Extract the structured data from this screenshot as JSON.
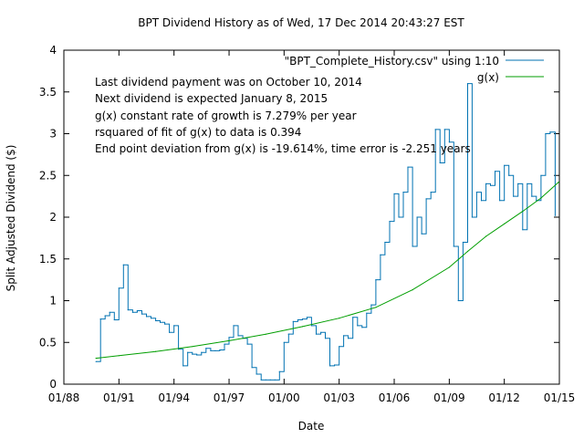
{
  "chart_data": {
    "type": "line",
    "title": "BPT Dividend History as of Wed, 17 Dec 2014 20:43:27 EST",
    "xlabel": "Date",
    "ylabel": "Split Adjusted Dividend ($)",
    "x_axis": {
      "kind": "date",
      "min": "1988-01-01",
      "max": "2015-01-01",
      "ticks": [
        {
          "date": "1988-01-01",
          "label": "01/88"
        },
        {
          "date": "1991-01-01",
          "label": "01/91"
        },
        {
          "date": "1994-01-01",
          "label": "01/94"
        },
        {
          "date": "1997-01-01",
          "label": "01/97"
        },
        {
          "date": "2000-01-01",
          "label": "01/00"
        },
        {
          "date": "2003-01-01",
          "label": "01/03"
        },
        {
          "date": "2006-01-01",
          "label": "01/06"
        },
        {
          "date": "2009-01-01",
          "label": "01/09"
        },
        {
          "date": "2012-01-01",
          "label": "01/12"
        },
        {
          "date": "2015-01-01",
          "label": "01/15"
        }
      ]
    },
    "y_axis": {
      "min": 0,
      "max": 4,
      "ticks": [
        {
          "value": 0,
          "label": "0"
        },
        {
          "value": 0.5,
          "label": "0.5"
        },
        {
          "value": 1,
          "label": "1"
        },
        {
          "value": 1.5,
          "label": "1.5"
        },
        {
          "value": 2,
          "label": "2"
        },
        {
          "value": 2.5,
          "label": "2.5"
        },
        {
          "value": 3,
          "label": "3"
        },
        {
          "value": 3.5,
          "label": "3.5"
        },
        {
          "value": 4,
          "label": "4"
        }
      ]
    },
    "grid": false,
    "legend_position": "top-right",
    "annotations": [
      "Last dividend payment was on October 10, 2014",
      "Next dividend is expected January 8, 2015",
      "g(x) constant rate of growth is  7.279% per year",
      "rsquared of fit of g(x) to data is  0.394",
      "End point deviation from g(x) is  -19.614%, time error is  -2.251 years"
    ],
    "series": [
      {
        "name": "\"BPT_Complete_History.csv\" using 1:10",
        "color": "#0072b2",
        "style": "steps",
        "points": [
          [
            "1989-10-01",
            0.27
          ],
          [
            "1990-01-01",
            0.78
          ],
          [
            "1990-04-01",
            0.82
          ],
          [
            "1990-07-01",
            0.86
          ],
          [
            "1990-10-01",
            0.77
          ],
          [
            "1991-01-01",
            1.15
          ],
          [
            "1991-04-01",
            1.43
          ],
          [
            "1991-07-01",
            0.89
          ],
          [
            "1991-10-01",
            0.86
          ],
          [
            "1992-01-01",
            0.88
          ],
          [
            "1992-04-01",
            0.84
          ],
          [
            "1992-07-01",
            0.81
          ],
          [
            "1992-10-01",
            0.79
          ],
          [
            "1993-01-01",
            0.76
          ],
          [
            "1993-04-01",
            0.74
          ],
          [
            "1993-07-01",
            0.72
          ],
          [
            "1993-10-01",
            0.62
          ],
          [
            "1994-01-01",
            0.7
          ],
          [
            "1994-04-01",
            0.42
          ],
          [
            "1994-07-01",
            0.22
          ],
          [
            "1994-10-01",
            0.38
          ],
          [
            "1995-01-01",
            0.36
          ],
          [
            "1995-04-01",
            0.35
          ],
          [
            "1995-07-01",
            0.38
          ],
          [
            "1995-10-01",
            0.43
          ],
          [
            "1996-01-01",
            0.4
          ],
          [
            "1996-04-01",
            0.4
          ],
          [
            "1996-07-01",
            0.41
          ],
          [
            "1996-10-01",
            0.48
          ],
          [
            "1997-01-01",
            0.56
          ],
          [
            "1997-04-01",
            0.7
          ],
          [
            "1997-07-01",
            0.58
          ],
          [
            "1997-10-01",
            0.55
          ],
          [
            "1998-01-01",
            0.48
          ],
          [
            "1998-04-01",
            0.2
          ],
          [
            "1998-07-01",
            0.12
          ],
          [
            "1998-10-01",
            0.05
          ],
          [
            "1999-01-01",
            0.05
          ],
          [
            "1999-04-01",
            0.05
          ],
          [
            "1999-07-01",
            0.05
          ],
          [
            "1999-10-01",
            0.15
          ],
          [
            "2000-01-01",
            0.5
          ],
          [
            "2000-04-01",
            0.6
          ],
          [
            "2000-07-01",
            0.75
          ],
          [
            "2000-10-01",
            0.77
          ],
          [
            "2001-01-01",
            0.78
          ],
          [
            "2001-04-01",
            0.8
          ],
          [
            "2001-07-01",
            0.7
          ],
          [
            "2001-10-01",
            0.6
          ],
          [
            "2002-01-01",
            0.62
          ],
          [
            "2002-04-01",
            0.55
          ],
          [
            "2002-07-01",
            0.22
          ],
          [
            "2002-10-01",
            0.23
          ],
          [
            "2003-01-01",
            0.45
          ],
          [
            "2003-04-01",
            0.58
          ],
          [
            "2003-07-01",
            0.55
          ],
          [
            "2003-10-01",
            0.8
          ],
          [
            "2004-01-01",
            0.7
          ],
          [
            "2004-04-01",
            0.68
          ],
          [
            "2004-07-01",
            0.85
          ],
          [
            "2004-10-01",
            0.95
          ],
          [
            "2005-01-01",
            1.25
          ],
          [
            "2005-04-01",
            1.55
          ],
          [
            "2005-07-01",
            1.7
          ],
          [
            "2005-10-01",
            1.95
          ],
          [
            "2006-01-01",
            2.28
          ],
          [
            "2006-04-01",
            2.0
          ],
          [
            "2006-07-01",
            2.3
          ],
          [
            "2006-10-01",
            2.6
          ],
          [
            "2007-01-01",
            1.65
          ],
          [
            "2007-04-01",
            2.0
          ],
          [
            "2007-07-01",
            1.8
          ],
          [
            "2007-10-01",
            2.22
          ],
          [
            "2008-01-01",
            2.3
          ],
          [
            "2008-04-01",
            3.05
          ],
          [
            "2008-07-01",
            2.65
          ],
          [
            "2008-10-01",
            3.05
          ],
          [
            "2009-01-01",
            2.9
          ],
          [
            "2009-04-01",
            1.65
          ],
          [
            "2009-07-01",
            1.0
          ],
          [
            "2009-10-01",
            1.7
          ],
          [
            "2010-01-01",
            3.6
          ],
          [
            "2010-04-01",
            2.0
          ],
          [
            "2010-07-01",
            2.3
          ],
          [
            "2010-10-01",
            2.2
          ],
          [
            "2011-01-01",
            2.4
          ],
          [
            "2011-04-01",
            2.38
          ],
          [
            "2011-07-01",
            2.55
          ],
          [
            "2011-10-01",
            2.2
          ],
          [
            "2012-01-01",
            2.62
          ],
          [
            "2012-04-01",
            2.5
          ],
          [
            "2012-07-01",
            2.25
          ],
          [
            "2012-10-01",
            2.4
          ],
          [
            "2013-01-01",
            1.85
          ],
          [
            "2013-04-01",
            2.4
          ],
          [
            "2013-07-01",
            2.25
          ],
          [
            "2013-10-01",
            2.2
          ],
          [
            "2014-01-01",
            2.5
          ],
          [
            "2014-04-01",
            3.0
          ],
          [
            "2014-07-01",
            3.02
          ],
          [
            "2014-10-10",
            2.02
          ]
        ]
      },
      {
        "name": "g(x)",
        "color": "#009e00",
        "style": "line",
        "points": [
          [
            "1989-10-01",
            0.31
          ],
          [
            "1991-01-01",
            0.341
          ],
          [
            "1993-01-01",
            0.391
          ],
          [
            "1995-01-01",
            0.45
          ],
          [
            "1997-01-01",
            0.52
          ],
          [
            "1999-01-01",
            0.598
          ],
          [
            "2001-01-01",
            0.69
          ],
          [
            "2003-01-01",
            0.79
          ],
          [
            "2005-01-01",
            0.92
          ],
          [
            "2007-01-01",
            1.13
          ],
          [
            "2009-01-01",
            1.4
          ],
          [
            "2010-01-01",
            1.59
          ],
          [
            "2011-01-01",
            1.77
          ],
          [
            "2012-01-01",
            1.92
          ],
          [
            "2013-01-01",
            2.07
          ],
          [
            "2014-01-01",
            2.23
          ],
          [
            "2014-12-17",
            2.42
          ]
        ]
      }
    ]
  }
}
